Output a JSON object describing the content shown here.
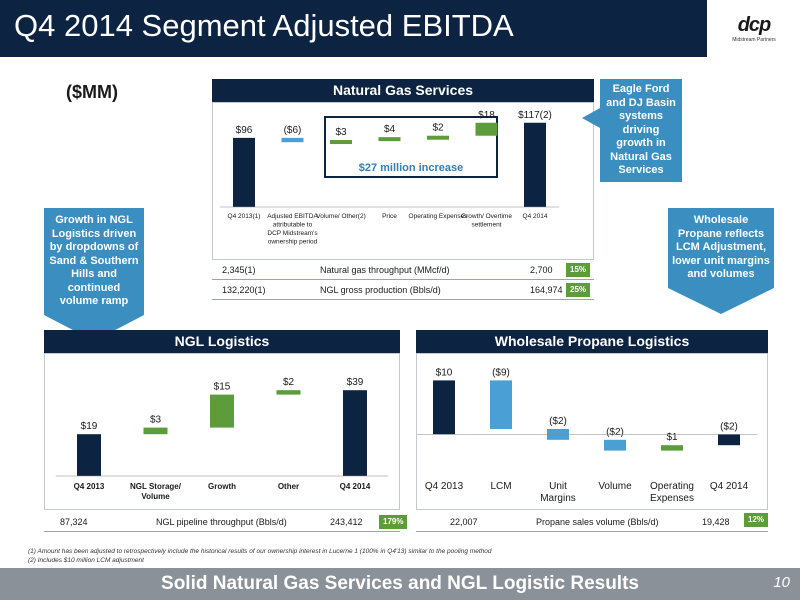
{
  "header": {
    "title": "Q4 2014 Segment Adjusted EBITDA",
    "logo_text": "dcp",
    "logo_sub": "Midstream Partners"
  },
  "units_label": "($MM)",
  "natural_gas": {
    "title": "Natural Gas Services",
    "increase_label": "$27 million increase",
    "chart_data": {
      "type": "waterfall",
      "categories": [
        "Q4 2013(1)",
        "Adjusted EBITDA attributable to DCP Midstream's ownership period",
        "Volume/ Other(2)",
        "Price",
        "Operating Expenses",
        "Growth/ Overtime settlement",
        "Q4 2014"
      ],
      "values": [
        96,
        -6,
        3,
        4,
        2,
        18,
        117
      ],
      "value_labels": [
        "$96",
        "($6)",
        "$3",
        "$4",
        "$2",
        "$18",
        "$117(2)"
      ],
      "kinds": [
        "total",
        "delta",
        "delta",
        "delta",
        "delta",
        "delta",
        "total"
      ]
    },
    "stats": [
      {
        "left": "2,345(1)",
        "label": "Natural gas throughput (MMcf/d)",
        "right": "2,700",
        "badge": "15%"
      },
      {
        "left": "132,220(1)",
        "label": "NGL gross production (Bbls/d)",
        "right": "164,974",
        "badge": "25%"
      }
    ]
  },
  "callouts": {
    "ngs": "Eagle Ford and DJ Basin systems driving growth in Natural Gas Services",
    "ngl": "Growth in NGL Logistics driven by dropdowns of Sand & Southern Hills and continued volume ramp",
    "wpl": "Wholesale Propane reflects LCM Adjustment, lower unit margins and volumes"
  },
  "ngl_logistics": {
    "title": "NGL Logistics",
    "chart_data": {
      "type": "waterfall",
      "categories": [
        "Q4 2013",
        "NGL Storage/ Volume",
        "Growth",
        "Other",
        "Q4 2014"
      ],
      "values": [
        19,
        3,
        15,
        2,
        39
      ],
      "value_labels": [
        "$19",
        "$3",
        "$15",
        "$2",
        "$39"
      ],
      "kinds": [
        "total",
        "delta",
        "delta",
        "delta",
        "total"
      ]
    },
    "stats": {
      "left": "87,324",
      "label": "NGL pipeline throughput (Bbls/d)",
      "right": "243,412",
      "badge": "179%"
    }
  },
  "wholesale_propane": {
    "title": "Wholesale Propane Logistics",
    "chart_data": {
      "type": "waterfall",
      "categories": [
        "Q4 2013",
        "LCM",
        "Unit Margins",
        "Volume",
        "Operating Expenses",
        "Q4 2014"
      ],
      "values": [
        10,
        -9,
        -2,
        -2,
        1,
        -2
      ],
      "value_labels": [
        "$10",
        "($9)",
        "($2)",
        "($2)",
        "$1",
        "($2)"
      ],
      "kinds": [
        "total",
        "delta",
        "delta",
        "delta",
        "delta",
        "total"
      ]
    },
    "stats": {
      "left": "22,007",
      "label": "Propane sales volume (Bbls/d)",
      "right": "19,428",
      "badge": "12%"
    }
  },
  "colors": {
    "total": "#0d2342",
    "decrease": "#4a9fd4",
    "increase": "#5c9c3a"
  },
  "footnotes": [
    "(1)  Amount has been adjusted to retrospectively include the historical results of our ownership interest in Lucerne 1 (100% in Q4'13) similar to the pooling method",
    "(2)  Includes $10 million LCM adjustment"
  ],
  "footer": {
    "text": "Solid Natural Gas Services and NGL Logistic Results",
    "page": "10"
  }
}
